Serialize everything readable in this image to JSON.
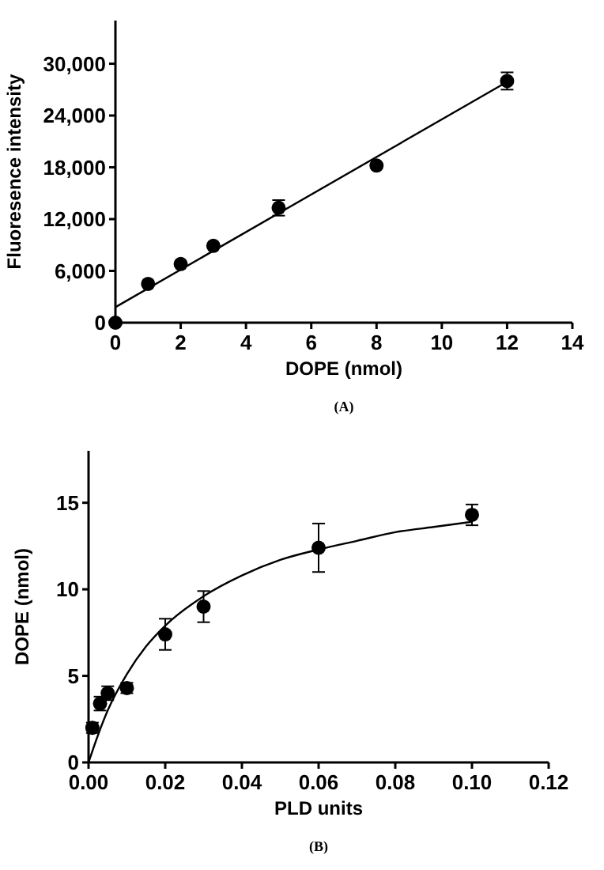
{
  "chart_data": [
    {
      "type": "scatter",
      "xlabel": "DOPE (nmol)",
      "ylabel": "Fluoresence intensity",
      "annotations": [
        "(A)"
      ],
      "xlim": [
        0,
        14
      ],
      "ylim": [
        0,
        35000
      ],
      "xticks": [
        0,
        2,
        4,
        6,
        8,
        10,
        12,
        14
      ],
      "yticks": [
        {
          "value": 0,
          "label": "0"
        },
        {
          "value": 6000,
          "label": "6,000"
        },
        {
          "value": 12000,
          "label": "12,000"
        },
        {
          "value": 18000,
          "label": "18,000"
        },
        {
          "value": 24000,
          "label": "24,000"
        },
        {
          "value": 30000,
          "label": "30,000"
        }
      ],
      "series": [
        {
          "marker": "circle",
          "color": "#000000",
          "x": [
            0,
            1,
            2,
            3,
            5,
            8,
            12
          ],
          "values": [
            0,
            4500,
            6800,
            8900,
            13300,
            18200,
            28000
          ],
          "errors": [
            null,
            null,
            null,
            null,
            900,
            null,
            1000
          ]
        },
        {
          "type": "line",
          "marker": "none",
          "color": "#000000",
          "x": [
            0,
            12
          ],
          "values": [
            1800,
            27900
          ]
        }
      ]
    },
    {
      "type": "scatter",
      "xlabel": "PLD units",
      "ylabel": "DOPE (nmol)",
      "annotations": [
        "(B)"
      ],
      "xlim": [
        0,
        0.12
      ],
      "ylim": [
        0,
        18
      ],
      "xticks": [
        {
          "value": 0,
          "label": "0.00"
        },
        {
          "value": 0.02,
          "label": "0.02"
        },
        {
          "value": 0.04,
          "label": "0.04"
        },
        {
          "value": 0.06,
          "label": "0.06"
        },
        {
          "value": 0.08,
          "label": "0.08"
        },
        {
          "value": 0.1,
          "label": "0.10"
        },
        {
          "value": 0.12,
          "label": "0.12"
        }
      ],
      "yticks": [
        0,
        5,
        10,
        15
      ],
      "series": [
        {
          "marker": "circle",
          "color": "#000000",
          "x": [
            0.001,
            0.003,
            0.005,
            0.01,
            0.02,
            0.03,
            0.06,
            0.1
          ],
          "values": [
            2.0,
            3.4,
            4.0,
            4.3,
            7.4,
            9.0,
            12.4,
            14.3
          ],
          "errors": [
            0.3,
            0.4,
            0.4,
            0.3,
            0.9,
            0.9,
            1.4,
            0.6
          ]
        },
        {
          "type": "line",
          "marker": "none",
          "color": "#000000",
          "x": [
            0,
            0.0025,
            0.005,
            0.01,
            0.015,
            0.02,
            0.03,
            0.04,
            0.05,
            0.06,
            0.07,
            0.08,
            0.09,
            0.1
          ],
          "values": [
            0,
            1.6,
            3.0,
            5.1,
            6.7,
            7.9,
            9.6,
            10.8,
            11.7,
            12.3,
            12.8,
            13.3,
            13.6,
            13.9
          ]
        }
      ]
    }
  ]
}
